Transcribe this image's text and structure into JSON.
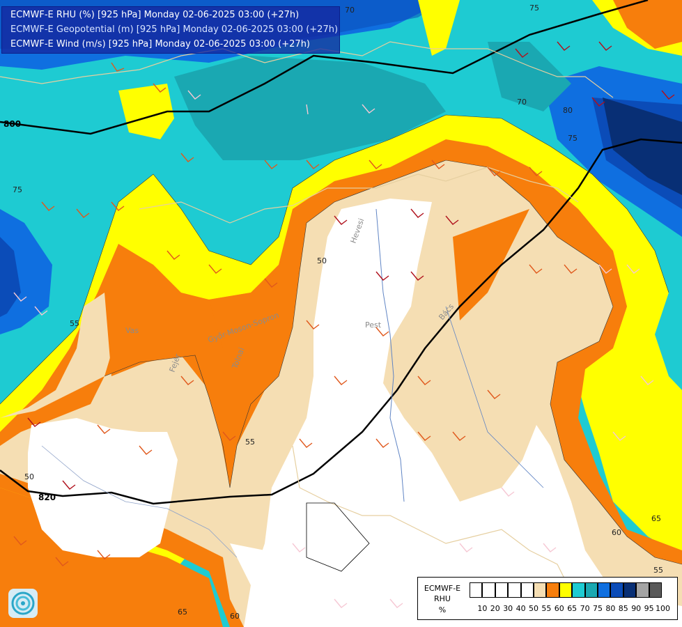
{
  "header": {
    "lines": [
      "ECMWF-E RHU (%) [925 hPa] Monday 02-06-2025 03:00 (+27h)",
      "ECMWF-E Geopotential (m) [925 hPa] Monday 02-06-2025 03:00 (+27h)",
      "ECMWF-E Wind (m/s) [925 hPa] Monday 02-06-2025 03:00 (+27h)"
    ]
  },
  "legend": {
    "title_lines": [
      "ECMWF-E",
      "RHU",
      "%"
    ],
    "levels": [
      "10",
      "20",
      "30",
      "40",
      "50",
      "55",
      "60",
      "65",
      "70",
      "75",
      "80",
      "85",
      "90",
      "95",
      "100"
    ],
    "colors": [
      "#ffffff",
      "#ffffff",
      "#ffffff",
      "#ffffff",
      "#ffffff",
      "#f5deb3",
      "#f77e0c",
      "#ffff00",
      "#1ecbd2",
      "#1aa8b2",
      "#0f6fe0",
      "#0b4cb8",
      "#082f75",
      "#a4a4a4",
      "#5a5a5a"
    ]
  },
  "map": {
    "geopotential_labels": [
      "800",
      "820"
    ],
    "rhu_labels": [
      "50",
      "55",
      "55",
      "60",
      "60",
      "65",
      "65",
      "70",
      "70",
      "75",
      "75",
      "75",
      "80",
      "55",
      "50"
    ],
    "place_labels": [
      "Pest",
      "Hevesi",
      "Vas",
      "Tolnai",
      "Győr-Moson-Sopron",
      "Bács",
      "Fejér"
    ]
  }
}
